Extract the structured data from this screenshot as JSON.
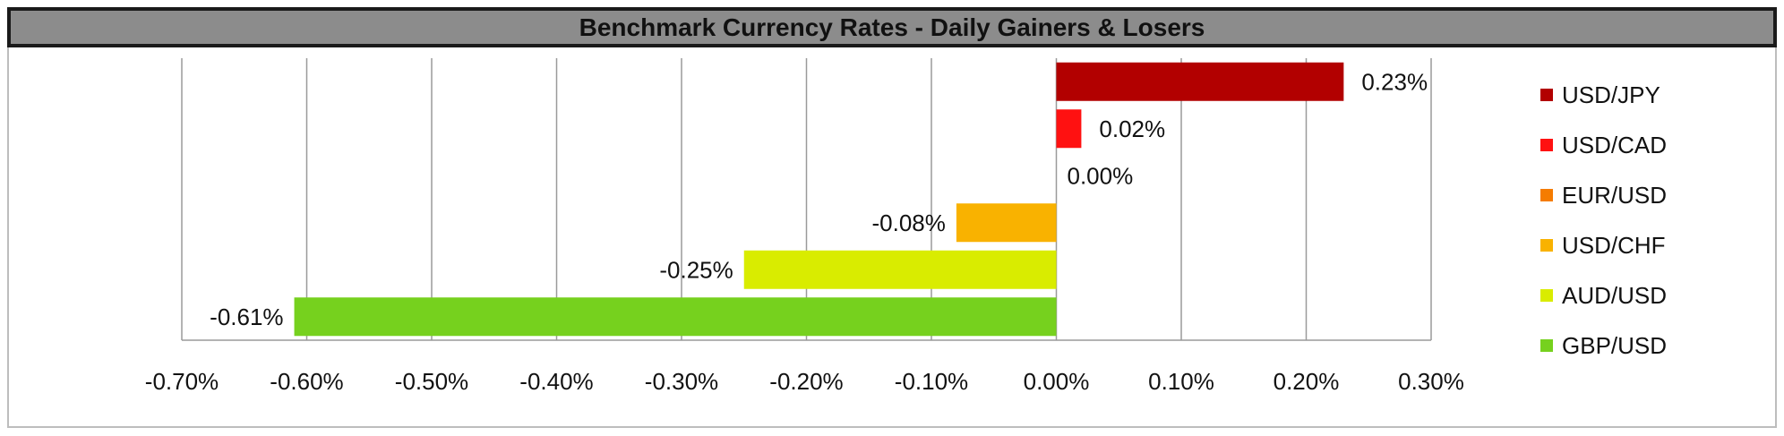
{
  "title": "Benchmark Currency Rates - Daily Gainers & Losers",
  "chart_data": {
    "type": "bar",
    "orientation": "horizontal",
    "title": "Benchmark Currency Rates - Daily Gainers & Losers",
    "xlabel": "",
    "ylabel": "",
    "xlim": [
      -0.7,
      0.3
    ],
    "x_ticks": [
      -0.7,
      -0.6,
      -0.5,
      -0.4,
      -0.3,
      -0.2,
      -0.1,
      0.0,
      0.1,
      0.2,
      0.3
    ],
    "x_tick_labels": [
      "-0.70%",
      "-0.60%",
      "-0.50%",
      "-0.40%",
      "-0.30%",
      "-0.20%",
      "-0.10%",
      "0.00%",
      "0.10%",
      "0.20%",
      "0.30%"
    ],
    "grid": "vertical",
    "legend_position": "right",
    "series": [
      {
        "name": "USD/JPY",
        "value": 0.23,
        "label": "0.23%",
        "color": "#b20000"
      },
      {
        "name": "USD/CAD",
        "value": 0.02,
        "label": "0.02%",
        "color": "#ff1111"
      },
      {
        "name": "EUR/USD",
        "value": 0.0,
        "label": "0.00%",
        "color": "#f57c00"
      },
      {
        "name": "USD/CHF",
        "value": -0.08,
        "label": "-0.08%",
        "color": "#f9b200"
      },
      {
        "name": "AUD/USD",
        "value": -0.25,
        "label": "-0.25%",
        "color": "#d9ec00"
      },
      {
        "name": "GBP/USD",
        "value": -0.61,
        "label": "-0.61%",
        "color": "#76d11e"
      }
    ]
  }
}
